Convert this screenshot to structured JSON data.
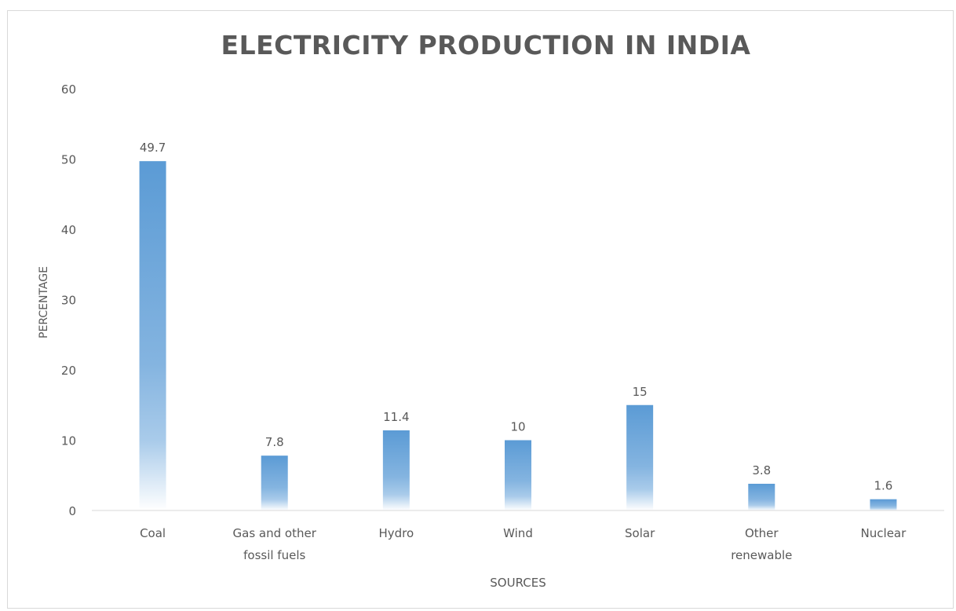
{
  "chart_data": {
    "type": "bar",
    "title": "ELECTRICITY PRODUCTION IN INDIA",
    "xlabel": "SOURCES",
    "ylabel": "PERCENTAGE",
    "categories": [
      "Coal",
      "Gas and other fossil fuels",
      "Hydro",
      "Wind",
      "Solar",
      "Other renewable",
      "Nuclear"
    ],
    "category_lines": [
      [
        "Coal"
      ],
      [
        "Gas and other",
        "fossil fuels"
      ],
      [
        "Hydro"
      ],
      [
        "Wind"
      ],
      [
        "Solar"
      ],
      [
        "Other",
        "renewable"
      ],
      [
        "Nuclear"
      ]
    ],
    "values": [
      49.7,
      7.8,
      11.4,
      10,
      15,
      3.8,
      1.6
    ],
    "value_labels": [
      "49.7",
      "7.8",
      "11.4",
      "10",
      "15",
      "3.8",
      "1.6"
    ],
    "ylim": [
      0,
      60
    ],
    "yticks": [
      0,
      10,
      20,
      30,
      40,
      50,
      60
    ],
    "grid": false,
    "legend": "none",
    "bar_color": "#5b9bd5"
  }
}
